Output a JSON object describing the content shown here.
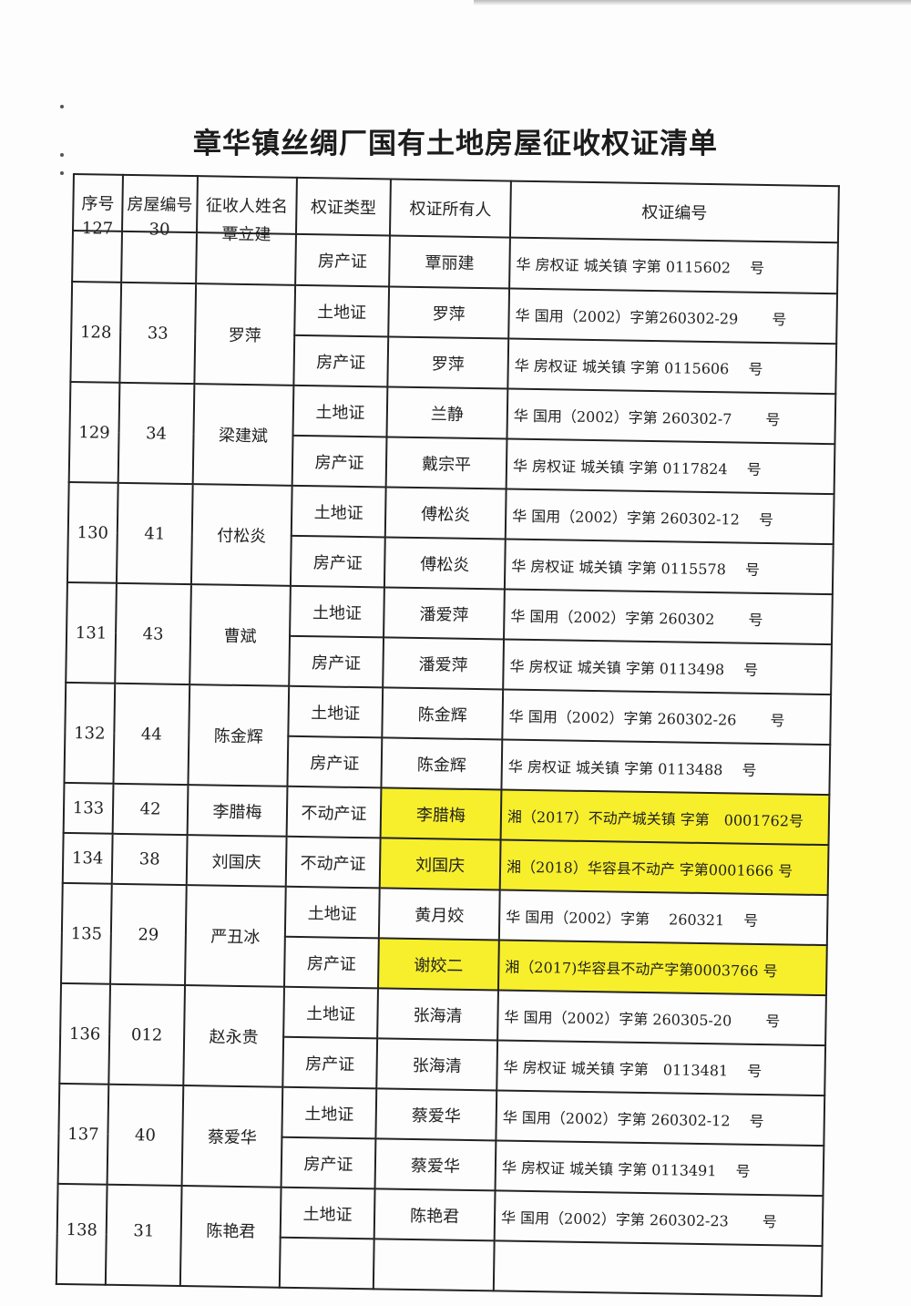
{
  "title": "章华镇丝绸厂国有土地房屋征收权证清单",
  "headers": [
    "序号",
    "房屋编号",
    "征收人姓名",
    "权证类型",
    "权证所有人",
    "权证编号"
  ],
  "highlight_color": "#f7ef2c",
  "rows": [
    {
      "no": "127",
      "house": "30",
      "name": "覃立建",
      "partial": "top",
      "certs": [
        {
          "type": "房产证",
          "owner": "覃丽建",
          "number": "华 房权证 城关镇 字第 0115602　 号"
        }
      ]
    },
    {
      "no": "128",
      "house": "33",
      "name": "罗萍",
      "certs": [
        {
          "type": "土地证",
          "owner": "罗萍",
          "number": "华 国用（2002）字第260302-29　　 号"
        },
        {
          "type": "房产证",
          "owner": "罗萍",
          "number": "华 房权证 城关镇 字第 0115606　 号"
        }
      ]
    },
    {
      "no": "129",
      "house": "34",
      "name": "梁建斌",
      "certs": [
        {
          "type": "土地证",
          "owner": "兰静",
          "number": "华 国用（2002）字第 260302-7　　 号"
        },
        {
          "type": "房产证",
          "owner": "戴宗平",
          "number": "华 房权证 城关镇 字第 0117824　 号"
        }
      ]
    },
    {
      "no": "130",
      "house": "41",
      "name": "付松炎",
      "certs": [
        {
          "type": "土地证",
          "owner": "傅松炎",
          "number": "华 国用（2002）字第 260302-12　 号"
        },
        {
          "type": "房产证",
          "owner": "傅松炎",
          "number": "华 房权证 城关镇 字第 0115578　 号"
        }
      ]
    },
    {
      "no": "131",
      "house": "43",
      "name": "曹斌",
      "certs": [
        {
          "type": "土地证",
          "owner": "潘爱萍",
          "number": "华 国用（2002）字第 260302　　 号"
        },
        {
          "type": "房产证",
          "owner": "潘爱萍",
          "number": "华 房权证 城关镇 字第 0113498　 号"
        }
      ]
    },
    {
      "no": "132",
      "house": "44",
      "name": "陈金辉",
      "certs": [
        {
          "type": "土地证",
          "owner": "陈金辉",
          "number": "华 国用（2002）字第 260302-26　　 号"
        },
        {
          "type": "房产证",
          "owner": "陈金辉",
          "number": "华 房权证 城关镇 字第 0113488　 号"
        }
      ]
    },
    {
      "no": "133",
      "house": "42",
      "name": "李腊梅",
      "certs": [
        {
          "type": "不动产证",
          "owner": "李腊梅",
          "number": "湘（2017）不动产城关镇 字第　0001762号",
          "highlight": true
        }
      ]
    },
    {
      "no": "134",
      "house": "38",
      "name": "刘国庆",
      "certs": [
        {
          "type": "不动产证",
          "owner": "刘国庆",
          "number": "湘（2018）华容县不动产 字第0001666 号",
          "highlight": true
        }
      ]
    },
    {
      "no": "135",
      "house": "29",
      "name": "严丑冰",
      "certs": [
        {
          "type": "土地证",
          "owner": "黄月姣",
          "number": "华 国用（2002）字第　 260321　 号"
        },
        {
          "type": "房产证",
          "owner": "谢姣二",
          "number": "湘（2017)华容县不动产字第0003766 号",
          "highlight": true
        }
      ]
    },
    {
      "no": "136",
      "house": "012",
      "name": "赵永贵",
      "certs": [
        {
          "type": "土地证",
          "owner": "张海清",
          "number": "华 国用（2002）字第 260305-20　　 号"
        },
        {
          "type": "房产证",
          "owner": "张海清",
          "number": "华 房权证 城关镇 字第　0113481　 号"
        }
      ]
    },
    {
      "no": "137",
      "house": "40",
      "name": "蔡爱华",
      "certs": [
        {
          "type": "土地证",
          "owner": "蔡爱华",
          "number": "华 国用（2002）字第 260302-12　 号"
        },
        {
          "type": "房产证",
          "owner": "蔡爱华",
          "number": "华 房权证 城关镇 字第 0113491　 号"
        }
      ]
    },
    {
      "no": "138",
      "house": "31",
      "name": "陈艳君",
      "partial": "bottom",
      "certs": [
        {
          "type": "土地证",
          "owner": "陈艳君",
          "number": "华 国用（2002）字第 260302-23　　 号"
        },
        {
          "type": "",
          "owner": "",
          "number": ""
        }
      ]
    }
  ]
}
